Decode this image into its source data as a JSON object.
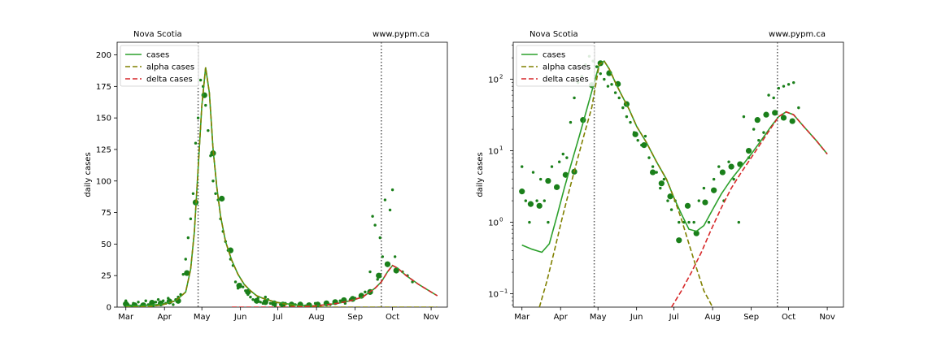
{
  "chart_data": [
    {
      "type": "line",
      "title_left": "Nova Scotia",
      "title_right": "www.pypm.ca",
      "xlabel": "",
      "ylabel": "daily cases",
      "yscale": "linear",
      "ylim": [
        0,
        210
      ],
      "yticks": [
        0,
        25,
        50,
        75,
        100,
        125,
        150,
        175,
        200
      ],
      "x_tick_labels": [
        "Mar",
        "Apr",
        "May",
        "Jun",
        "Jul",
        "Aug",
        "Sep",
        "Oct",
        "Nov"
      ],
      "x_tick_days": [
        0,
        31,
        61,
        92,
        122,
        153,
        184,
        214,
        245
      ],
      "xlim_days": [
        -7,
        258
      ],
      "vlines_days": [
        58,
        205
      ],
      "legend": {
        "position": "top-left",
        "entries": [
          "cases",
          "alpha cases",
          "delta cases"
        ]
      },
      "grid": false,
      "series": [
        {
          "name": "cases",
          "style": "solid",
          "color": "#2ca02c",
          "x": [
            0,
            10,
            20,
            30,
            40,
            48,
            52,
            55,
            58,
            61,
            64,
            67,
            70,
            73,
            76,
            80,
            85,
            90,
            95,
            100,
            105,
            110,
            120,
            130,
            140,
            150,
            160,
            170,
            180,
            190,
            200,
            205,
            210,
            214,
            218,
            225,
            235,
            245,
            250
          ],
          "y": [
            1,
            1,
            1.5,
            2.5,
            5,
            12,
            30,
            60,
            110,
            160,
            190,
            170,
            125,
            95,
            72,
            52,
            37,
            26,
            18,
            13,
            9,
            7,
            4,
            2.5,
            1.2,
            1,
            1.8,
            3,
            5,
            8,
            15,
            20,
            28,
            33,
            31,
            25,
            18,
            12,
            9
          ]
        },
        {
          "name": "alpha cases",
          "style": "dashed",
          "color": "#808000",
          "x": [
            0,
            10,
            20,
            30,
            40,
            48,
            52,
            55,
            58,
            61,
            64,
            67,
            70,
            73,
            76,
            80,
            85,
            90,
            95,
            100,
            105,
            110,
            120,
            130,
            140,
            150,
            160,
            170,
            180,
            190,
            200,
            205,
            210,
            214,
            218,
            225,
            235,
            245,
            250
          ],
          "y": [
            0,
            0.1,
            0.5,
            2,
            5,
            12,
            30,
            60,
            110,
            160,
            190,
            170,
            125,
            95,
            72,
            52,
            37,
            26,
            18,
            13,
            9,
            7,
            4,
            2,
            0.5,
            0.2,
            0,
            0,
            0,
            0,
            0,
            0,
            0,
            0,
            0,
            0,
            0,
            0,
            0
          ]
        },
        {
          "name": "delta cases",
          "style": "dashed",
          "color": "#d62728",
          "x": [
            85,
            100,
            120,
            130,
            140,
            150,
            160,
            170,
            180,
            190,
            200,
            205,
            210,
            214,
            218,
            225,
            235,
            245,
            250
          ],
          "y": [
            0,
            0,
            0,
            0,
            0.3,
            0.8,
            1.8,
            3,
            5,
            8,
            15,
            20,
            28,
            33,
            31,
            25,
            18,
            12,
            9
          ]
        }
      ],
      "observations": {
        "color": "#1a7f1a",
        "weekly_x": [
          0,
          7,
          14,
          21,
          28,
          35,
          42,
          49,
          56,
          63,
          70,
          77,
          84,
          91,
          98,
          105,
          112,
          119,
          126,
          133,
          140,
          147,
          154,
          161,
          168,
          175,
          182,
          189,
          196,
          203,
          210,
          217
        ],
        "weekly_y": [
          2.5,
          1.5,
          1.5,
          3.5,
          3,
          4.5,
          5,
          27,
          83,
          168,
          122,
          86,
          45,
          17,
          12,
          5,
          4,
          3,
          2,
          2,
          2,
          1.5,
          2,
          3,
          4,
          5.5,
          6.5,
          9,
          12,
          25,
          34,
          29
        ],
        "daily_x": [
          0,
          2,
          4,
          6,
          8,
          10,
          12,
          14,
          16,
          18,
          20,
          22,
          24,
          26,
          28,
          30,
          32,
          34,
          36,
          38,
          40,
          42,
          44,
          46,
          48,
          50,
          52,
          54,
          56,
          58,
          60,
          62,
          64,
          66,
          68,
          70,
          72,
          74,
          76,
          78,
          80,
          82,
          84,
          86,
          88,
          90,
          92,
          94,
          96,
          98,
          100,
          102,
          104,
          106,
          108,
          110,
          112,
          114,
          116,
          118,
          120,
          124,
          128,
          132,
          136,
          140,
          144,
          148,
          152,
          156,
          160,
          164,
          168,
          172,
          176,
          180,
          184,
          188,
          192,
          196,
          198,
          200,
          202,
          204,
          206,
          208,
          210,
          212,
          214,
          216,
          218,
          222,
          226,
          230
        ],
        "daily_y": [
          5,
          2,
          1,
          3,
          2,
          4,
          1,
          2,
          5,
          2,
          3,
          1,
          4,
          6,
          2,
          5,
          3,
          7,
          4,
          2,
          6,
          8,
          10,
          26,
          38,
          55,
          70,
          90,
          130,
          150,
          180,
          175,
          160,
          140,
          120,
          100,
          90,
          85,
          70,
          60,
          52,
          45,
          38,
          33,
          20,
          15,
          18,
          16,
          13,
          10,
          8,
          6,
          5,
          7,
          4,
          3,
          8,
          6,
          3,
          2,
          1,
          2,
          3,
          1,
          2,
          1,
          1,
          2,
          3,
          1,
          2,
          2,
          4,
          5,
          3,
          6,
          7,
          8,
          12,
          28,
          72,
          65,
          22,
          55,
          40,
          85,
          35,
          77,
          93,
          40,
          30,
          28,
          25,
          20
        ]
      }
    },
    {
      "type": "line",
      "title_left": "Nova Scotia",
      "title_right": "www.pypm.ca",
      "xlabel": "",
      "ylabel": "daily cases",
      "yscale": "log",
      "ylim": [
        0.065,
        330
      ],
      "yticks": [
        0.1,
        1,
        10,
        100
      ],
      "ytick_labels": [
        "10",
        "10",
        "10",
        "10"
      ],
      "ytick_exponents": [
        "−1",
        "0",
        "1",
        "2"
      ],
      "x_tick_labels": [
        "Mar",
        "Apr",
        "May",
        "Jun",
        "Jul",
        "Aug",
        "Sep",
        "Oct",
        "Nov"
      ],
      "x_tick_days": [
        0,
        31,
        61,
        92,
        122,
        153,
        184,
        214,
        245
      ],
      "xlim_days": [
        -7,
        258
      ],
      "vlines_days": [
        58,
        205
      ],
      "legend": {
        "position": "top-left",
        "entries": [
          "cases",
          "alpha cases",
          "delta cases"
        ]
      },
      "grid": false,
      "series": [
        {
          "name": "cases",
          "style": "solid",
          "color": "#2ca02c",
          "x": [
            0,
            8,
            16,
            22,
            28,
            34,
            40,
            46,
            52,
            58,
            62,
            66,
            70,
            75,
            80,
            86,
            92,
            100,
            108,
            116,
            122,
            128,
            134,
            140,
            146,
            152,
            160,
            168,
            176,
            184,
            192,
            200,
            206,
            212,
            218,
            226,
            236,
            245
          ],
          "y": [
            0.48,
            0.42,
            0.38,
            0.5,
            1.2,
            3,
            7,
            16,
            38,
            90,
            160,
            180,
            140,
            90,
            60,
            38,
            22,
            13,
            7,
            4,
            2.2,
            1.3,
            0.8,
            0.75,
            0.9,
            1.4,
            2.5,
            4,
            6,
            9,
            14,
            22,
            30,
            35,
            32,
            22,
            14,
            9
          ]
        },
        {
          "name": "alpha cases",
          "style": "dashed",
          "color": "#808000",
          "x": [
            14,
            20,
            26,
            32,
            38,
            44,
            50,
            56,
            62,
            66,
            70,
            75,
            80,
            86,
            92,
            100,
            108,
            116,
            122,
            128,
            134,
            140,
            146,
            152,
            156
          ],
          "y": [
            0.065,
            0.15,
            0.4,
            1.1,
            2.8,
            7,
            17,
            40,
            160,
            180,
            140,
            90,
            60,
            38,
            22,
            13,
            7,
            4,
            2.2,
            1.1,
            0.5,
            0.23,
            0.11,
            0.07,
            0.05
          ]
        },
        {
          "name": "delta cases",
          "style": "dashed",
          "color": "#d62728",
          "x": [
            120,
            128,
            136,
            144,
            152,
            160,
            168,
            176,
            184,
            192,
            200,
            206,
            212,
            218,
            226,
            236,
            245
          ],
          "y": [
            0.065,
            0.11,
            0.2,
            0.38,
            0.8,
            1.6,
            3,
            5,
            8,
            13,
            21,
            30,
            35,
            32,
            22,
            14,
            9
          ]
        }
      ],
      "observations": {
        "color": "#1a7f1a",
        "weekly_x": [
          0,
          7,
          14,
          21,
          28,
          35,
          42,
          49,
          56,
          63,
          70,
          77,
          84,
          91,
          98,
          105,
          112,
          119,
          126,
          133,
          140,
          147,
          154,
          161,
          168,
          175,
          182,
          189,
          196,
          203,
          210,
          217
        ],
        "weekly_y": [
          2.7,
          1.8,
          1.7,
          3.8,
          3.1,
          4.6,
          5.1,
          27,
          83,
          168,
          122,
          86,
          45,
          17,
          12,
          5,
          3.5,
          2.3,
          0.56,
          1.7,
          0.7,
          1.9,
          2.8,
          5,
          6,
          6.5,
          10,
          27,
          32,
          34,
          29,
          26
        ],
        "daily_x": [
          0,
          3,
          6,
          9,
          12,
          15,
          18,
          21,
          24,
          27,
          30,
          33,
          36,
          39,
          42,
          45,
          48,
          51,
          54,
          57,
          60,
          63,
          66,
          69,
          72,
          75,
          78,
          81,
          84,
          87,
          90,
          93,
          96,
          99,
          102,
          105,
          108,
          111,
          114,
          117,
          120,
          123,
          126,
          130,
          134,
          138,
          142,
          146,
          150,
          154,
          158,
          162,
          166,
          170,
          174,
          178,
          182,
          186,
          190,
          194,
          198,
          202,
          206,
          210,
          214,
          218,
          222
        ],
        "daily_y": [
          6,
          2,
          1,
          5,
          2,
          4,
          2,
          1,
          6,
          3,
          7,
          9,
          8,
          25,
          55,
          90,
          110,
          160,
          210,
          180,
          150,
          120,
          100,
          80,
          85,
          65,
          55,
          40,
          30,
          25,
          18,
          14,
          12,
          16,
          8,
          6,
          5,
          3,
          4,
          2,
          1.5,
          2,
          1,
          1,
          1,
          1,
          2,
          3,
          1,
          4,
          6,
          2,
          7,
          4,
          1,
          30,
          8,
          20,
          14,
          18,
          60,
          55,
          75,
          80,
          85,
          90,
          40
        ]
      }
    }
  ]
}
